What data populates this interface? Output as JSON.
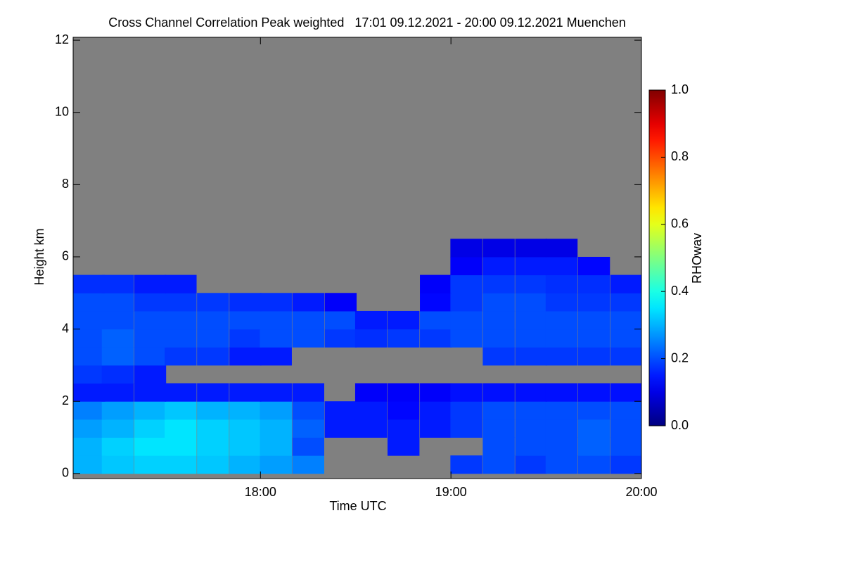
{
  "chart_data": {
    "type": "heatmap",
    "title": "Cross Channel Correlation Peak weighted   17:01 09.12.2021 - 20:00 09.12.2021 Muenchen",
    "x_label": "Time UTC",
    "y_label": "Height km",
    "xlim": [
      17.0167,
      20.0
    ],
    "xticks": [
      {
        "value": 18,
        "label": "18:00"
      },
      {
        "value": 19,
        "label": "19:00"
      },
      {
        "value": 20,
        "label": "20:00"
      }
    ],
    "ylim": [
      -0.14,
      12.08
    ],
    "yticks": [
      0,
      2,
      4,
      6,
      8,
      10,
      12
    ],
    "nodata_color": "#808080",
    "colorbar": {
      "label": "RHOwav",
      "lim": [
        0,
        1
      ],
      "ticks": [
        {
          "value": 0,
          "label": "0.0"
        },
        0.2,
        0.4,
        0.6,
        0.8,
        {
          "value": 1,
          "label": "1.0"
        }
      ]
    },
    "x": [
      17.1,
      17.25,
      17.42,
      17.58,
      17.75,
      17.92,
      18.08,
      18.25,
      18.42,
      18.58,
      18.75,
      18.92,
      19.08,
      19.25,
      19.42,
      19.58,
      19.75,
      19.92
    ],
    "y": [
      0.25,
      0.75,
      1.25,
      1.75,
      2.25,
      2.75,
      3.25,
      3.75,
      4.25,
      4.75,
      5.25,
      5.75,
      6.25,
      6.75,
      7.25,
      7.75,
      8.25,
      8.75,
      9.25,
      9.75,
      10.25,
      10.75,
      11.25,
      11.75
    ],
    "z": [
      [
        0.3,
        0.32,
        0.33,
        0.33,
        0.32,
        0.3,
        0.28,
        0.25,
        null,
        null,
        null,
        null,
        0.18,
        0.2,
        0.18,
        0.2,
        0.2,
        0.18
      ],
      [
        0.3,
        0.33,
        0.35,
        0.35,
        0.33,
        0.32,
        0.3,
        0.2,
        null,
        null,
        0.15,
        null,
        null,
        0.2,
        0.2,
        0.2,
        0.22,
        0.2
      ],
      [
        0.28,
        0.3,
        0.33,
        0.35,
        0.33,
        0.32,
        0.3,
        0.22,
        0.15,
        0.15,
        0.15,
        0.15,
        0.18,
        0.2,
        0.2,
        0.2,
        0.22,
        0.2
      ],
      [
        0.25,
        0.28,
        0.3,
        0.32,
        0.3,
        0.3,
        0.28,
        0.2,
        0.15,
        0.15,
        0.13,
        0.15,
        0.18,
        0.2,
        0.2,
        0.2,
        0.2,
        0.2
      ],
      [
        0.15,
        0.15,
        0.15,
        0.15,
        0.15,
        0.15,
        0.15,
        0.15,
        null,
        0.12,
        0.12,
        0.12,
        0.14,
        0.14,
        0.14,
        0.14,
        0.14,
        0.14
      ],
      [
        0.18,
        0.17,
        0.15,
        null,
        null,
        null,
        null,
        null,
        null,
        null,
        null,
        null,
        null,
        null,
        null,
        null,
        null,
        null
      ],
      [
        0.2,
        0.22,
        0.2,
        0.18,
        0.18,
        0.15,
        0.15,
        null,
        null,
        null,
        null,
        null,
        null,
        0.18,
        0.18,
        0.18,
        0.18,
        0.18
      ],
      [
        0.2,
        0.22,
        0.2,
        0.2,
        0.2,
        0.18,
        0.2,
        0.2,
        0.18,
        0.17,
        0.18,
        0.18,
        0.2,
        0.2,
        0.2,
        0.2,
        0.2,
        0.2
      ],
      [
        0.2,
        0.2,
        0.2,
        0.2,
        0.2,
        0.2,
        0.2,
        0.2,
        0.2,
        0.15,
        0.15,
        0.2,
        0.2,
        0.2,
        0.2,
        0.2,
        0.2,
        0.2
      ],
      [
        0.2,
        0.2,
        0.18,
        0.18,
        0.18,
        0.17,
        0.17,
        0.15,
        0.12,
        null,
        null,
        0.13,
        0.18,
        0.2,
        0.2,
        0.18,
        0.18,
        0.18
      ],
      [
        0.17,
        0.17,
        0.15,
        0.15,
        null,
        null,
        null,
        null,
        null,
        null,
        null,
        0.12,
        0.18,
        0.18,
        0.18,
        0.17,
        0.17,
        0.15
      ],
      [
        null,
        null,
        null,
        null,
        null,
        null,
        null,
        null,
        null,
        null,
        null,
        null,
        0.12,
        0.15,
        0.15,
        0.15,
        0.13,
        null
      ],
      [
        null,
        null,
        null,
        null,
        null,
        null,
        null,
        null,
        null,
        null,
        null,
        null,
        0.1,
        0.1,
        0.1,
        0.1,
        null,
        null
      ],
      [
        null,
        null,
        null,
        null,
        null,
        null,
        null,
        null,
        null,
        null,
        null,
        null,
        null,
        null,
        null,
        null,
        null,
        null
      ],
      [
        null,
        null,
        null,
        null,
        null,
        null,
        null,
        null,
        null,
        null,
        null,
        null,
        null,
        null,
        null,
        null,
        null,
        null
      ],
      [
        null,
        null,
        null,
        null,
        null,
        null,
        null,
        null,
        null,
        null,
        null,
        null,
        null,
        null,
        null,
        null,
        null,
        null
      ],
      [
        null,
        null,
        null,
        null,
        null,
        null,
        null,
        null,
        null,
        null,
        null,
        null,
        null,
        null,
        null,
        null,
        null,
        null
      ],
      [
        null,
        null,
        null,
        null,
        null,
        null,
        null,
        null,
        null,
        null,
        null,
        null,
        null,
        null,
        null,
        null,
        null,
        null
      ],
      [
        null,
        null,
        null,
        null,
        null,
        null,
        null,
        null,
        null,
        null,
        null,
        null,
        null,
        null,
        null,
        null,
        null,
        null
      ],
      [
        null,
        null,
        null,
        null,
        null,
        null,
        null,
        null,
        null,
        null,
        null,
        null,
        null,
        null,
        null,
        null,
        null,
        null
      ],
      [
        null,
        null,
        null,
        null,
        null,
        null,
        null,
        null,
        null,
        null,
        null,
        null,
        null,
        null,
        null,
        null,
        null,
        null
      ],
      [
        null,
        null,
        null,
        null,
        null,
        null,
        null,
        null,
        null,
        null,
        null,
        null,
        null,
        null,
        null,
        null,
        null,
        null
      ],
      [
        null,
        null,
        null,
        null,
        null,
        null,
        null,
        null,
        null,
        null,
        null,
        null,
        null,
        null,
        null,
        null,
        null,
        null
      ],
      [
        null,
        null,
        null,
        null,
        null,
        null,
        null,
        null,
        null,
        null,
        null,
        null,
        null,
        null,
        null,
        null,
        null,
        null
      ]
    ]
  }
}
